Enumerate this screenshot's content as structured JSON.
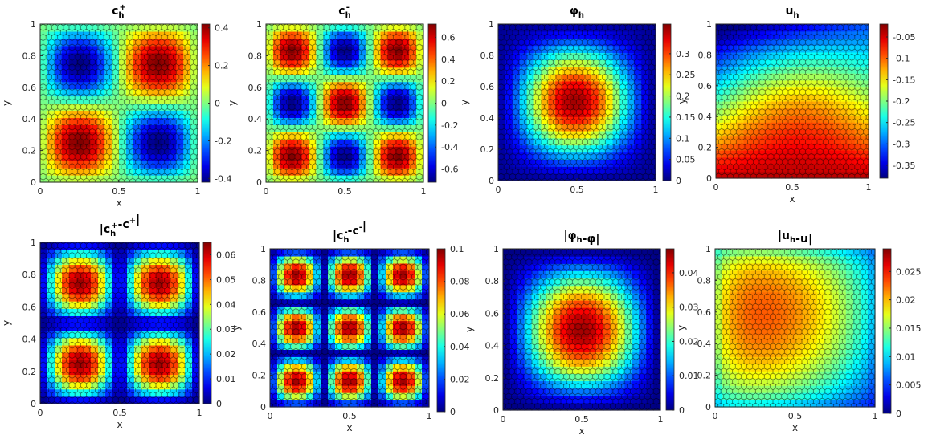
{
  "colormap": [
    "#00007f",
    "#0000ff",
    "#007fff",
    "#00ffff",
    "#7fff7f",
    "#ffff00",
    "#ff7f00",
    "#ff0000",
    "#7f0000"
  ],
  "mesh_color": "#000000",
  "chart_data": [
    {
      "type": "heatmap",
      "title_base": "c",
      "title_sub": "h",
      "title_sup": "+",
      "xlabel": "x",
      "ylabel": "y",
      "xlim": [
        0,
        1
      ],
      "ylim": [
        0,
        1
      ],
      "xticks": [
        "0",
        "0.5",
        "1"
      ],
      "yticks": [
        "0",
        "0.2",
        "0.4",
        "0.6",
        "0.8",
        "1"
      ],
      "clim": [
        -0.42,
        0.42
      ],
      "colorbar_ticks": [
        "-0.4",
        "-0.2",
        "0",
        "0.2",
        "0.4"
      ],
      "colorbar_values": [
        -0.4,
        -0.2,
        0,
        0.2,
        0.4
      ],
      "field": "0.42*sin(2*pi*x)*sin(2*pi*y) (sign: +0.4 at (0.25,0.25) and (0.75,0.75), -0.4 at (0.75,0.25) and (0.25,0.75))"
    },
    {
      "type": "heatmap",
      "title_base": "c",
      "title_sub": "h",
      "title_sup": "-",
      "xlabel": "",
      "ylabel": "y",
      "xlim": [
        0,
        1
      ],
      "ylim": [
        0,
        1
      ],
      "xticks": [
        "0",
        "0.5",
        "1"
      ],
      "yticks": [
        "0",
        "0.2",
        "0.4",
        "0.6",
        "0.8",
        "1"
      ],
      "clim": [
        -0.72,
        0.72
      ],
      "colorbar_ticks": [
        "-0.6",
        "-0.4",
        "-0.2",
        "0",
        "0.2",
        "0.4",
        "0.6"
      ],
      "colorbar_values": [
        -0.6,
        -0.4,
        -0.2,
        0,
        0.2,
        0.4,
        0.6
      ],
      "field": "0.72*sin(3*pi*x)*sin(3*pi*y)"
    },
    {
      "type": "heatmap",
      "title_base": "φ",
      "title_sub": "h",
      "title_sup": "",
      "xlabel": "",
      "ylabel": "y",
      "xlim": [
        0,
        1
      ],
      "ylim": [
        0,
        1
      ],
      "xticks": [
        "0",
        "0.5",
        "1"
      ],
      "yticks": [
        "0",
        "0.2",
        "0.4",
        "0.6",
        "0.8",
        "1"
      ],
      "clim": [
        0,
        0.37
      ],
      "colorbar_ticks": [
        "0",
        "0.05",
        "0.1",
        "0.15",
        "0.2",
        "0.25",
        "0.3"
      ],
      "colorbar_values": [
        0,
        0.05,
        0.1,
        0.15,
        0.2,
        0.25,
        0.3
      ],
      "field": "peak about 0.35 near (0.5,0.5), zero on boundary"
    },
    {
      "type": "heatmap",
      "title_base": "u",
      "title_sub": "h",
      "title_sup": "",
      "xlabel": "x",
      "ylabel": "y",
      "xlim": [
        0,
        1
      ],
      "ylim": [
        0,
        1
      ],
      "xticks": [
        "0",
        "0.5",
        "1"
      ],
      "yticks": [
        "0",
        "0.2",
        "0.4",
        "0.6",
        "0.8",
        "1"
      ],
      "clim": [
        -0.38,
        -0.02
      ],
      "colorbar_ticks": [
        "-0.35",
        "-0.3",
        "-0.25",
        "-0.2",
        "-0.15",
        "-0.1",
        "-0.05"
      ],
      "colorbar_values": [
        -0.35,
        -0.3,
        -0.25,
        -0.2,
        -0.15,
        -0.1,
        -0.05
      ],
      "field": "about -0.02 near bottom edge, about -0.37 near top-left"
    },
    {
      "type": "heatmap",
      "title_text": "|c_h^+-c^+|",
      "title_base": "|c",
      "title_sub": "h",
      "title_sup": "+",
      "title_tail": "-c",
      "title_tail_sup": "+",
      "title_end": "|",
      "xlabel": "x",
      "ylabel": "y",
      "xlim": [
        0,
        1
      ],
      "ylim": [
        0,
        1
      ],
      "xticks": [
        "0",
        "0.5",
        "1"
      ],
      "yticks": [
        "0",
        "0.2",
        "0.4",
        "0.6",
        "0.8",
        "1"
      ],
      "clim": [
        0,
        0.065
      ],
      "colorbar_ticks": [
        "0",
        "0.01",
        "0.02",
        "0.03",
        "0.04",
        "0.05",
        "0.06"
      ],
      "colorbar_values": [
        0,
        0.01,
        0.02,
        0.03,
        0.04,
        0.05,
        0.06
      ],
      "field": "peaks about 0.063 at the four quadrant centers"
    },
    {
      "type": "heatmap",
      "title_base": "|c",
      "title_sub": "h",
      "title_sup": "-",
      "title_tail": "-c",
      "title_tail_sup": "-",
      "title_end": "|",
      "xlabel": "x",
      "ylabel": "y",
      "xlim": [
        0,
        1
      ],
      "ylim": [
        0,
        1
      ],
      "xticks": [
        "0",
        "0.5",
        "1"
      ],
      "yticks": [
        "0",
        "0.2",
        "0.4",
        "0.6",
        "0.8",
        "1"
      ],
      "clim": [
        0,
        0.1
      ],
      "colorbar_ticks": [
        "0",
        "0.02",
        "0.04",
        "0.06",
        "0.08",
        "0.1"
      ],
      "colorbar_values": [
        0,
        0.02,
        0.04,
        0.06,
        0.08,
        0.1
      ],
      "field": "peaks about 0.1 at the nine cell centers"
    },
    {
      "type": "heatmap",
      "title_base": "|φ",
      "title_sub": "h",
      "title_sup": "",
      "title_tail": "-φ",
      "title_tail_sup": "",
      "title_end": "|",
      "xlabel": "x",
      "ylabel": "y",
      "xlim": [
        0,
        1
      ],
      "ylim": [
        0,
        1
      ],
      "xticks": [
        "0",
        "0.5",
        "1"
      ],
      "yticks": [
        "0",
        "0.2",
        "0.4",
        "0.6",
        "0.8",
        "1"
      ],
      "clim": [
        0,
        0.047
      ],
      "colorbar_ticks": [
        "0",
        "0.01",
        "0.02",
        "0.03",
        "0.04"
      ],
      "colorbar_values": [
        0,
        0.01,
        0.02,
        0.03,
        0.04
      ],
      "field": "peak about 0.046 near (0.5,0.5)"
    },
    {
      "type": "heatmap",
      "title_base": "|u",
      "title_sub": "h",
      "title_sup": "",
      "title_tail": "-u",
      "title_tail_sup": "",
      "title_end": "|",
      "xlabel": "x",
      "ylabel": "y",
      "xlim": [
        0,
        1
      ],
      "ylim": [
        0,
        1
      ],
      "xticks": [
        "0",
        "0.5",
        "1"
      ],
      "yticks": [
        "0",
        "0.2",
        "0.4",
        "0.6",
        "0.8",
        "1"
      ],
      "clim": [
        0,
        0.029
      ],
      "colorbar_ticks": [
        "0",
        "0.005",
        "0.01",
        "0.015",
        "0.02",
        "0.025"
      ],
      "colorbar_values": [
        0,
        0.005,
        0.01,
        0.015,
        0.02,
        0.025
      ],
      "field": "about 0.028 near top-left, about 0 at bottom-right"
    }
  ]
}
